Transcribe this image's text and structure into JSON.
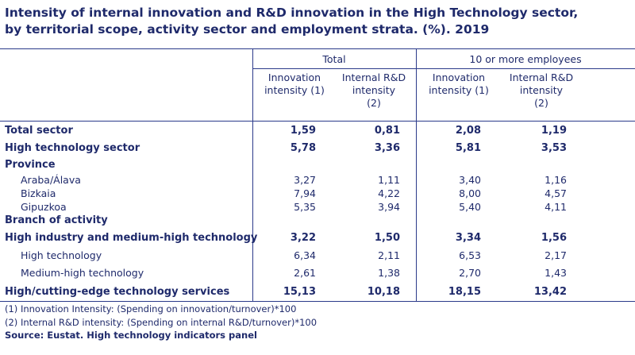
{
  "title": {
    "line1": "Intensity of internal innovation and R&D innovation in the High Technology sector,",
    "line2": "by territorial scope, activity sector and employment strata. (%). 2019"
  },
  "header": {
    "group_total": "Total",
    "group_10plus": "10 or more employees",
    "col_innov_a": "Innovation",
    "col_innov_b": "intensity (1)",
    "col_rd_a": "Internal R&D",
    "col_rd_b": "intensity",
    "col_rd_c": "(2)"
  },
  "rows": [
    {
      "label": "Total sector",
      "values": [
        "1,59",
        "0,81",
        "2,08",
        "1,19"
      ]
    },
    {
      "label": "High technology sector",
      "values": [
        "5,78",
        "3,36",
        "5,81",
        "3,53"
      ]
    },
    {
      "label": "Province"
    },
    {
      "label": "Araba/Álava",
      "values": [
        "3,27",
        "1,11",
        "3,40",
        "1,16"
      ]
    },
    {
      "label": "Bizkaia",
      "values": [
        "7,94",
        "4,22",
        "8,00",
        "4,57"
      ]
    },
    {
      "label": "Gipuzkoa",
      "values": [
        "5,35",
        "3,94",
        "5,40",
        "4,11"
      ]
    },
    {
      "label": "Branch of activity"
    },
    {
      "label": "High industry and medium-high technology",
      "values": [
        "3,22",
        "1,50",
        "3,34",
        "1,56"
      ]
    },
    {
      "label": "High technology",
      "values": [
        "6,34",
        "2,11",
        "6,53",
        "2,17"
      ]
    },
    {
      "label": "Medium-high technology",
      "values": [
        "2,61",
        "1,38",
        "2,70",
        "1,43"
      ]
    },
    {
      "label": "High/cutting-edge technology services",
      "values": [
        "15,13",
        "10,18",
        "18,15",
        "13,42"
      ]
    }
  ],
  "notes": {
    "note1": "(1) Innovation Intensity: (Spending on innovation/turnover)*100",
    "note2": "(2) Internal R&D intensity: (Spending on internal R&D/turnover)*100",
    "source": "Source: Eustat. High technology indicators panel"
  }
}
